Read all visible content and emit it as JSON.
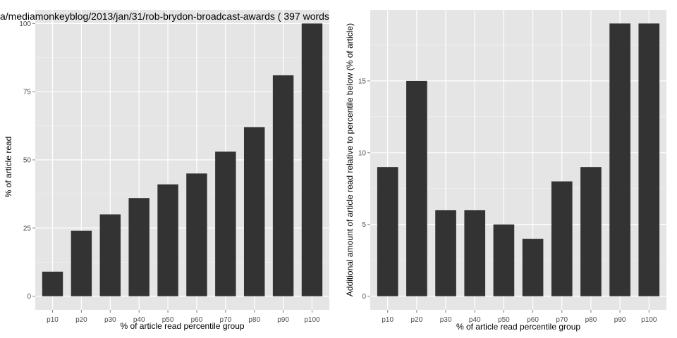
{
  "title": "a/mediamonkeyblog/2013/jan/31/rob-brydon-broadcast-awards ( 397 words",
  "chart_data": [
    {
      "type": "bar",
      "categories": [
        "p10",
        "p20",
        "p30",
        "p40",
        "p50",
        "p60",
        "p70",
        "p80",
        "p90",
        "p100"
      ],
      "values": [
        9,
        24,
        30,
        36,
        41,
        45,
        53,
        62,
        81,
        100
      ],
      "xlabel": "% of article read percentile group",
      "ylabel": "% of article read",
      "ylim": [
        0,
        100
      ],
      "yticks": [
        0,
        25,
        50,
        75,
        100
      ],
      "grid": true,
      "bar_color": "#333333",
      "panel_color": "#e5e5e5"
    },
    {
      "type": "bar",
      "categories": [
        "p10",
        "p20",
        "p30",
        "p40",
        "p50",
        "p60",
        "p70",
        "p80",
        "p90",
        "p100"
      ],
      "values": [
        9,
        15,
        6,
        6,
        5,
        4,
        8,
        9,
        19,
        19
      ],
      "xlabel": "% of article read percentile group",
      "ylabel": "Additional amount of article read relative to percentile below (% of article)",
      "ylim": [
        0,
        19
      ],
      "yticks": [
        0,
        5,
        10,
        15
      ],
      "grid": true,
      "bar_color": "#333333",
      "panel_color": "#e5e5e5"
    }
  ]
}
